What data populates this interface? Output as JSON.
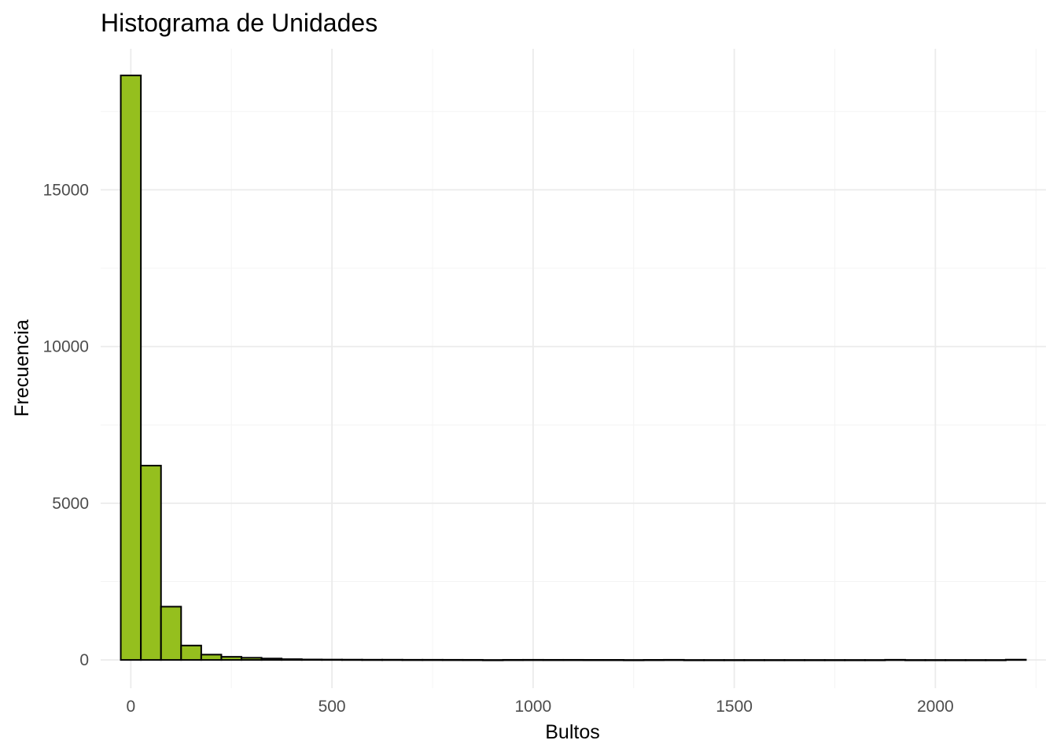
{
  "chart_data": {
    "type": "bar",
    "title": "Histograma de Unidades",
    "xlabel": "Bultos",
    "ylabel": "Frecuencia",
    "bin_width": 50,
    "bin_centers": [
      0,
      50,
      100,
      150,
      200,
      250,
      300,
      350,
      400,
      450,
      500,
      550,
      600,
      650,
      700,
      750,
      800,
      850,
      900,
      950,
      1000,
      1050,
      1100,
      1150,
      1200,
      1250,
      1300,
      1350,
      1400,
      1450,
      1500,
      1550,
      1600,
      1650,
      1700,
      1750,
      1800,
      1850,
      1900,
      1950,
      2000,
      2050,
      2100,
      2150,
      2200
    ],
    "values": [
      18650,
      6200,
      1700,
      460,
      170,
      100,
      70,
      45,
      25,
      15,
      12,
      10,
      8,
      8,
      6,
      6,
      5,
      4,
      0,
      4,
      5,
      4,
      4,
      3,
      3,
      0,
      3,
      5,
      0,
      0,
      0,
      0,
      0,
      0,
      0,
      0,
      0,
      0,
      6,
      0,
      0,
      0,
      0,
      0,
      10
    ],
    "xlim": [
      -75,
      2275
    ],
    "ylim": [
      -900,
      19500
    ],
    "x_ticks": [
      0,
      500,
      1000,
      1500,
      2000
    ],
    "x_tick_labels": [
      "0",
      "500",
      "1000",
      "1500",
      "2000"
    ],
    "y_ticks": [
      0,
      5000,
      10000,
      15000
    ],
    "y_tick_labels": [
      "0",
      "5000",
      "10000",
      "15000"
    ],
    "grid": true,
    "bar_fill": "#95bf1e",
    "bar_outline": "#000000"
  }
}
